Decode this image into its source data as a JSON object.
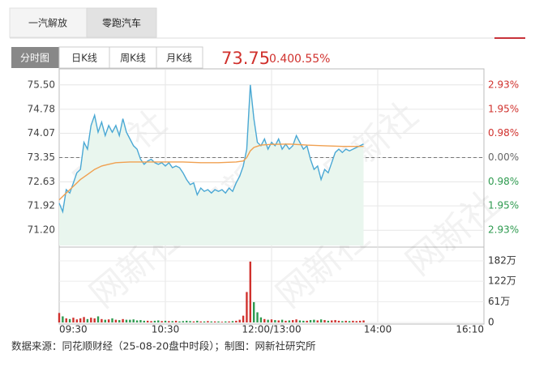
{
  "tabs": [
    "一汽解放",
    "零跑汽车"
  ],
  "views": [
    "分时图",
    "日K线",
    "周K线",
    "月K线"
  ],
  "quote": {
    "price": "73.75",
    "change": "0.40",
    "change_pct": "0.55%"
  },
  "watermark": "网新社",
  "source": "数据来源：同花顺财经（25-08-20盘中时段）；制图：网新社研究所",
  "chart_data": [
    {
      "type": "line",
      "xlim": [
        0,
        240
      ],
      "xticks": [
        {
          "value": 0,
          "label": "09:30"
        },
        {
          "value": 60,
          "label": "10:30"
        },
        {
          "value": 120,
          "label": "12:00/13:00"
        },
        {
          "value": 180,
          "label": "14:00"
        },
        {
          "value": 240,
          "label": "16:10"
        }
      ],
      "ylim": [
        70.75,
        75.95
      ],
      "yticks": [
        {
          "value": 75.5,
          "label": "75.50"
        },
        74.78,
        74.07,
        73.35,
        72.63,
        71.92,
        {
          "value": 71.2,
          "label": "71.20"
        }
      ],
      "y2lim": [
        -3.55,
        3.55
      ],
      "y2ticks": [
        {
          "value": 2.93,
          "label": "2.93%"
        },
        {
          "value": 1.95,
          "label": "1.95%"
        },
        {
          "value": 0.98,
          "label": "0.98%"
        },
        {
          "value": 0,
          "label": "0.00%"
        },
        {
          "value": -0.98,
          "label": "0.98%"
        },
        {
          "value": -1.95,
          "label": "1.95%"
        },
        {
          "value": -2.93,
          "label": "2.93%"
        }
      ],
      "up_color": "#d0312d",
      "down_color": "#2e9a4f",
      "grid": true,
      "series": [
        {
          "color": "#4aa8d4",
          "fill": "#e9f6ee",
          "x": [
            0,
            2,
            4,
            6,
            8,
            10,
            12,
            14,
            16,
            18,
            20,
            22,
            24,
            26,
            28,
            30,
            32,
            34,
            36,
            38,
            40,
            42,
            44,
            46,
            48,
            50,
            52,
            54,
            56,
            58,
            60,
            62,
            64,
            66,
            68,
            70,
            72,
            74,
            76,
            78,
            80,
            82,
            84,
            86,
            88,
            90,
            92,
            94,
            96,
            98,
            100,
            102,
            104,
            106,
            108,
            110,
            112,
            114,
            116,
            118,
            120,
            122,
            124,
            126,
            128,
            130,
            132,
            134,
            136,
            138,
            140,
            142,
            144,
            146,
            148,
            150,
            152,
            154,
            156,
            158,
            160,
            162,
            164,
            166,
            168,
            170,
            172
          ],
          "values": [
            72.0,
            71.75,
            72.4,
            72.3,
            72.6,
            72.9,
            73.0,
            73.8,
            73.6,
            74.3,
            74.6,
            74.1,
            74.4,
            74.0,
            74.3,
            74.1,
            74.3,
            74.0,
            74.5,
            74.1,
            73.9,
            73.7,
            73.6,
            73.3,
            73.15,
            73.25,
            73.3,
            73.2,
            73.15,
            73.2,
            73.1,
            73.2,
            73.05,
            73.1,
            73.05,
            72.9,
            72.7,
            72.55,
            72.6,
            72.25,
            72.45,
            72.35,
            72.4,
            72.3,
            72.4,
            72.35,
            72.4,
            72.3,
            72.45,
            72.35,
            72.6,
            72.8,
            73.1,
            73.6,
            75.5,
            74.5,
            73.8,
            73.7,
            73.9,
            73.6,
            73.8,
            73.7,
            73.9,
            73.6,
            73.75,
            73.6,
            73.7,
            74.0,
            73.8,
            73.6,
            73.7,
            73.3,
            73.0,
            73.1,
            72.7,
            73.0,
            72.9,
            73.2,
            73.5,
            73.6,
            73.5,
            73.6,
            73.55,
            73.6,
            73.65,
            73.7,
            73.75
          ]
        },
        {
          "color": "#f0a050",
          "x": [
            0,
            4,
            8,
            12,
            16,
            20,
            24,
            28,
            32,
            40,
            50,
            60,
            70,
            80,
            90,
            100,
            104,
            106,
            108,
            110,
            114,
            120,
            130,
            140,
            150,
            160,
            172
          ],
          "values": [
            72.1,
            72.3,
            72.5,
            72.7,
            72.85,
            73.0,
            73.1,
            73.15,
            73.2,
            73.22,
            73.22,
            73.22,
            73.22,
            73.2,
            73.2,
            73.22,
            73.25,
            73.35,
            73.55,
            73.65,
            73.72,
            73.74,
            73.75,
            73.72,
            73.7,
            73.68,
            73.68
          ]
        }
      ]
    },
    {
      "type": "bar",
      "xlim": [
        0,
        240
      ],
      "ylim": [
        0,
        218
      ],
      "yticks": [
        {
          "value": 182,
          "label": "182万"
        },
        {
          "value": 122,
          "label": "122万"
        },
        {
          "value": 61,
          "label": "61万"
        },
        0
      ],
      "up_color": "#d0312d",
      "down_color": "#2e9a4f",
      "x": [
        0,
        2,
        4,
        6,
        8,
        10,
        12,
        14,
        16,
        18,
        20,
        22,
        24,
        26,
        28,
        30,
        32,
        34,
        36,
        38,
        40,
        42,
        44,
        46,
        48,
        50,
        52,
        54,
        56,
        58,
        60,
        62,
        64,
        66,
        68,
        70,
        72,
        74,
        76,
        78,
        80,
        82,
        84,
        86,
        88,
        90,
        92,
        94,
        96,
        98,
        100,
        102,
        104,
        106,
        108,
        110,
        112,
        114,
        116,
        118,
        120,
        122,
        124,
        126,
        128,
        130,
        132,
        134,
        136,
        138,
        140,
        142,
        144,
        146,
        148,
        150,
        152,
        154,
        156,
        158,
        160,
        162,
        164,
        166,
        168,
        170,
        172
      ],
      "values": [
        28,
        18,
        12,
        10,
        14,
        9,
        12,
        16,
        10,
        14,
        12,
        18,
        10,
        8,
        9,
        12,
        8,
        7,
        10,
        8,
        8,
        9,
        6,
        7,
        5,
        5,
        4,
        5,
        6,
        4,
        5,
        4,
        4,
        5,
        3,
        4,
        5,
        4,
        3,
        5,
        3,
        3,
        4,
        3,
        3,
        3,
        2,
        3,
        3,
        4,
        5,
        8,
        20,
        90,
        180,
        60,
        30,
        15,
        10,
        8,
        9,
        7,
        6,
        8,
        5,
        6,
        7,
        9,
        6,
        5,
        5,
        7,
        8,
        6,
        9,
        7,
        5,
        6,
        7,
        5,
        4,
        5,
        4,
        5,
        4,
        5,
        6
      ]
    }
  ]
}
